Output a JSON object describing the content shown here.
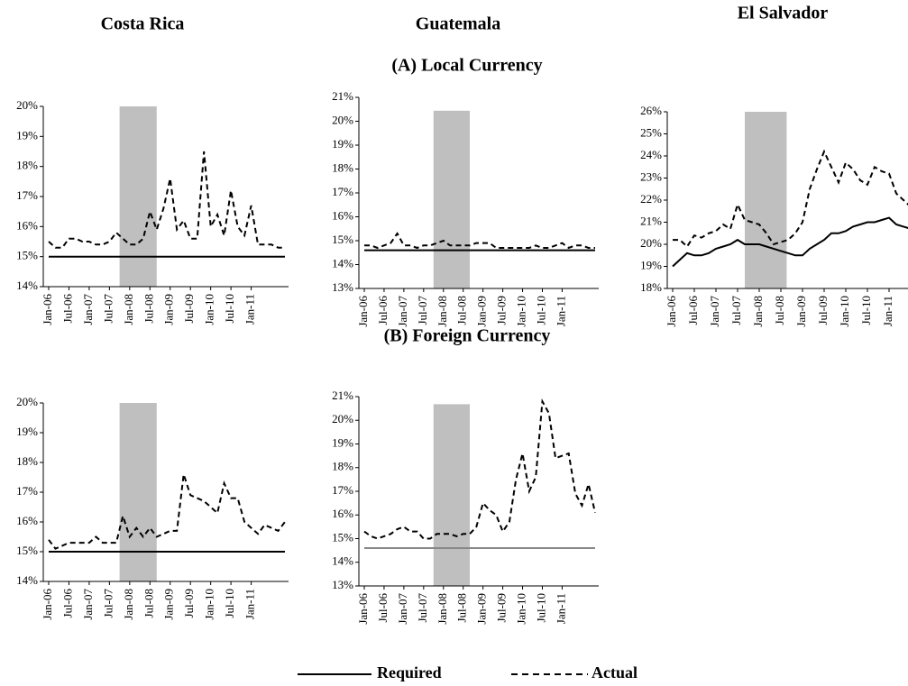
{
  "headings": [
    "Costa Rica",
    "Guatemala",
    "El Salvador"
  ],
  "sections": [
    "(A) Local Currency",
    "(B) Foreign Currency"
  ],
  "chart_data": [
    {
      "type": "line",
      "categories": [
        "Jan-06",
        null,
        null,
        "Jul-06",
        null,
        null,
        "Jan-07",
        null,
        null,
        "Jul-07",
        null,
        null,
        "Jan-08",
        null,
        null,
        "Jul-08",
        null,
        null,
        "Jan-09",
        null,
        null,
        "Jul-09",
        null,
        null,
        "Jan-10",
        null,
        null,
        "Jul-10",
        null,
        null,
        "Jan-11",
        null,
        null,
        null,
        null,
        null
      ],
      "ylim": [
        14,
        20
      ],
      "yticks": [
        {
          "value": 14,
          "label": "14%"
        },
        {
          "value": 15,
          "label": "15%"
        },
        {
          "value": 16,
          "label": "16%"
        },
        {
          "value": 17,
          "label": "17%"
        },
        {
          "value": 18,
          "label": "18%"
        },
        {
          "value": 19,
          "label": "19%"
        },
        {
          "value": 20,
          "label": "20%"
        }
      ],
      "series": [
        {
          "name": "Required",
          "color": "#000000",
          "style": "solid",
          "values": [
            15,
            15,
            15,
            15,
            15,
            15,
            15,
            15,
            15,
            15,
            15,
            15,
            15,
            15,
            15,
            15,
            15,
            15,
            15,
            15,
            15,
            15,
            15,
            15,
            15,
            15,
            15,
            15,
            15,
            15,
            15,
            15,
            15,
            15,
            15,
            15
          ]
        },
        {
          "name": "Actual",
          "color": "#000000",
          "style": "dashed",
          "values": [
            15.5,
            15.3,
            15.3,
            15.6,
            15.6,
            15.5,
            15.5,
            15.4,
            15.4,
            15.5,
            15.8,
            15.6,
            15.4,
            15.4,
            15.6,
            16.5,
            15.9,
            16.6,
            17.6,
            15.9,
            16.2,
            15.6,
            15.6,
            18.5,
            16.0,
            16.4,
            15.7,
            17.2,
            16.0,
            15.7,
            16.7,
            15.4,
            15.4,
            15.4,
            15.3,
            15.3
          ]
        }
      ]
    },
    {
      "type": "line",
      "categories": [
        "Jan-06",
        null,
        null,
        "Jul-06",
        null,
        null,
        "Jan-07",
        null,
        null,
        "Jul-07",
        null,
        null,
        "Jan-08",
        null,
        null,
        "Jul-08",
        null,
        null,
        "Jan-09",
        null,
        null,
        "Jul-09",
        null,
        null,
        "Jan-10",
        null,
        null,
        "Jul-10",
        null,
        null,
        "Jan-11",
        null,
        null,
        null,
        null,
        null
      ],
      "ylim": [
        13,
        21
      ],
      "yticks": [
        {
          "value": 13,
          "label": "13%"
        },
        {
          "value": 14,
          "label": "14%"
        },
        {
          "value": 15,
          "label": "15%"
        },
        {
          "value": 16,
          "label": "16%"
        },
        {
          "value": 17,
          "label": "17%"
        },
        {
          "value": 18,
          "label": "18%"
        },
        {
          "value": 19,
          "label": "19%"
        },
        {
          "value": 20,
          "label": "20%"
        },
        {
          "value": 21,
          "label": "21%"
        }
      ],
      "series": [
        {
          "name": "Required",
          "color": "#000000",
          "style": "solid",
          "values": [
            14.6,
            14.6,
            14.6,
            14.6,
            14.6,
            14.6,
            14.6,
            14.6,
            14.6,
            14.6,
            14.6,
            14.6,
            14.6,
            14.6,
            14.6,
            14.6,
            14.6,
            14.6,
            14.6,
            14.6,
            14.6,
            14.6,
            14.6,
            14.6,
            14.6,
            14.6,
            14.6,
            14.6,
            14.6,
            14.6,
            14.6,
            14.6,
            14.6,
            14.6,
            14.6,
            14.6
          ]
        },
        {
          "name": "Actual",
          "color": "#000000",
          "style": "dashed",
          "values": [
            14.8,
            14.8,
            14.7,
            14.8,
            14.9,
            15.3,
            14.8,
            14.8,
            14.7,
            14.8,
            14.8,
            14.9,
            15.0,
            14.8,
            14.8,
            14.8,
            14.8,
            14.9,
            14.9,
            14.9,
            14.7,
            14.7,
            14.7,
            14.7,
            14.7,
            14.7,
            14.8,
            14.7,
            14.7,
            14.8,
            14.9,
            14.7,
            14.8,
            14.8,
            14.7,
            14.7
          ]
        }
      ]
    },
    {
      "type": "line",
      "categories": [
        "Jan-06",
        null,
        null,
        "Jul-06",
        null,
        null,
        "Jan-07",
        null,
        null,
        "Jul-07",
        null,
        null,
        "Jan-08",
        null,
        null,
        "Jul-08",
        null,
        null,
        "Jan-09",
        null,
        null,
        "Jul-09",
        null,
        null,
        "Jan-10",
        null,
        null,
        "Jul-10",
        null,
        null,
        "Jan-11",
        null,
        null,
        null,
        null,
        null
      ],
      "ylim": [
        18,
        26
      ],
      "yticks": [
        {
          "value": 18,
          "label": "18%"
        },
        {
          "value": 19,
          "label": "19%"
        },
        {
          "value": 20,
          "label": "20%"
        },
        {
          "value": 21,
          "label": "21%"
        },
        {
          "value": 22,
          "label": "22%"
        },
        {
          "value": 23,
          "label": "23%"
        },
        {
          "value": 24,
          "label": "24%"
        },
        {
          "value": 25,
          "label": "25%"
        },
        {
          "value": 26,
          "label": "26%"
        }
      ],
      "series": [
        {
          "name": "Required",
          "color": "#000000",
          "style": "solid",
          "values": [
            19.0,
            19.3,
            19.6,
            19.5,
            19.5,
            19.6,
            19.8,
            19.9,
            20.0,
            20.2,
            20.0,
            20.0,
            20.0,
            19.9,
            19.8,
            19.7,
            19.6,
            19.5,
            19.5,
            19.8,
            20.0,
            20.2,
            20.5,
            20.5,
            20.6,
            20.8,
            20.9,
            21.0,
            21.0,
            21.1,
            21.2,
            20.9,
            20.8,
            20.7,
            20.7,
            20.7
          ]
        },
        {
          "name": "Actual",
          "color": "#000000",
          "style": "dashed",
          "values": [
            20.2,
            20.2,
            19.9,
            20.4,
            20.3,
            20.5,
            20.6,
            20.9,
            20.7,
            21.8,
            21.1,
            21.0,
            20.9,
            20.5,
            20.0,
            20.1,
            20.2,
            20.5,
            21.0,
            22.5,
            23.4,
            24.2,
            23.5,
            22.8,
            23.7,
            23.4,
            22.9,
            22.7,
            23.5,
            23.3,
            23.2,
            22.3,
            22.0,
            21.7,
            21.5,
            21.3
          ]
        }
      ]
    },
    {
      "type": "line",
      "categories": [
        "Jan-06",
        null,
        null,
        "Jul-06",
        null,
        null,
        "Jan-07",
        null,
        null,
        "Jul-07",
        null,
        null,
        "Jan-08",
        null,
        null,
        "Jul-08",
        null,
        null,
        "Jan-09",
        null,
        null,
        "Jul-09",
        null,
        null,
        "Jan-10",
        null,
        null,
        "Jul-10",
        null,
        null,
        "Jan-11",
        null,
        null,
        null,
        null,
        null
      ],
      "ylim": [
        14,
        20
      ],
      "yticks": [
        {
          "value": 14,
          "label": "14%"
        },
        {
          "value": 15,
          "label": "15%"
        },
        {
          "value": 16,
          "label": "16%"
        },
        {
          "value": 17,
          "label": "17%"
        },
        {
          "value": 18,
          "label": "18%"
        },
        {
          "value": 19,
          "label": "19%"
        },
        {
          "value": 20,
          "label": "20%"
        }
      ],
      "series": [
        {
          "name": "Required",
          "color": "#000000",
          "style": "solid",
          "values": [
            15,
            15,
            15,
            15,
            15,
            15,
            15,
            15,
            15,
            15,
            15,
            15,
            15,
            15,
            15,
            15,
            15,
            15,
            15,
            15,
            15,
            15,
            15,
            15,
            15,
            15,
            15,
            15,
            15,
            15,
            15,
            15,
            15,
            15,
            15,
            15
          ]
        },
        {
          "name": "Actual",
          "color": "#000000",
          "style": "dashed",
          "values": [
            15.4,
            15.1,
            15.2,
            15.3,
            15.3,
            15.3,
            15.3,
            15.5,
            15.3,
            15.3,
            15.3,
            16.2,
            15.5,
            15.8,
            15.5,
            15.8,
            15.5,
            15.6,
            15.7,
            15.7,
            17.6,
            16.9,
            16.8,
            16.7,
            16.5,
            16.3,
            17.3,
            16.8,
            16.8,
            16.0,
            15.8,
            15.6,
            15.9,
            15.8,
            15.7,
            16.0
          ]
        }
      ]
    },
    {
      "type": "line",
      "categories": [
        "Jan-06",
        null,
        null,
        "Jul-06",
        null,
        null,
        "Jan-07",
        null,
        null,
        "Jul-07",
        null,
        null,
        "Jan-08",
        null,
        null,
        "Jul-08",
        null,
        null,
        "Jan-09",
        null,
        null,
        "Jul-09",
        null,
        null,
        "Jan-10",
        null,
        null,
        "Jul-10",
        null,
        null,
        "Jan-11",
        null,
        null,
        null,
        null,
        null
      ],
      "ylim": [
        13,
        21
      ],
      "yticks": [
        {
          "value": 13,
          "label": "13%"
        },
        {
          "value": 14,
          "label": "14%"
        },
        {
          "value": 15,
          "label": "15%"
        },
        {
          "value": 16,
          "label": "16%"
        },
        {
          "value": 17,
          "label": "17%"
        },
        {
          "value": 18,
          "label": "18%"
        },
        {
          "value": 19,
          "label": "19%"
        },
        {
          "value": 20,
          "label": "20%"
        },
        {
          "value": 21,
          "label": "21%"
        }
      ],
      "series": [
        {
          "name": "Required",
          "color": "#888888",
          "style": "solid",
          "values": [
            14.6,
            14.6,
            14.6,
            14.6,
            14.6,
            14.6,
            14.6,
            14.6,
            14.6,
            14.6,
            14.6,
            14.6,
            14.6,
            14.6,
            14.6,
            14.6,
            14.6,
            14.6,
            14.6,
            14.6,
            14.6,
            14.6,
            14.6,
            14.6,
            14.6,
            14.6,
            14.6,
            14.6,
            14.6,
            14.6,
            14.6,
            14.6,
            14.6,
            14.6,
            14.6,
            14.6
          ]
        },
        {
          "name": "Actual",
          "color": "#000000",
          "style": "dashed",
          "values": [
            15.3,
            15.1,
            15.0,
            15.1,
            15.2,
            15.4,
            15.5,
            15.3,
            15.3,
            15.0,
            15.0,
            15.2,
            15.2,
            15.2,
            15.1,
            15.2,
            15.2,
            15.5,
            16.5,
            16.2,
            16.0,
            15.3,
            15.7,
            17.5,
            18.6,
            17.0,
            17.6,
            20.8,
            20.3,
            18.4,
            18.5,
            18.6,
            16.9,
            16.4,
            17.3,
            16.1
          ]
        }
      ]
    }
  ]
}
